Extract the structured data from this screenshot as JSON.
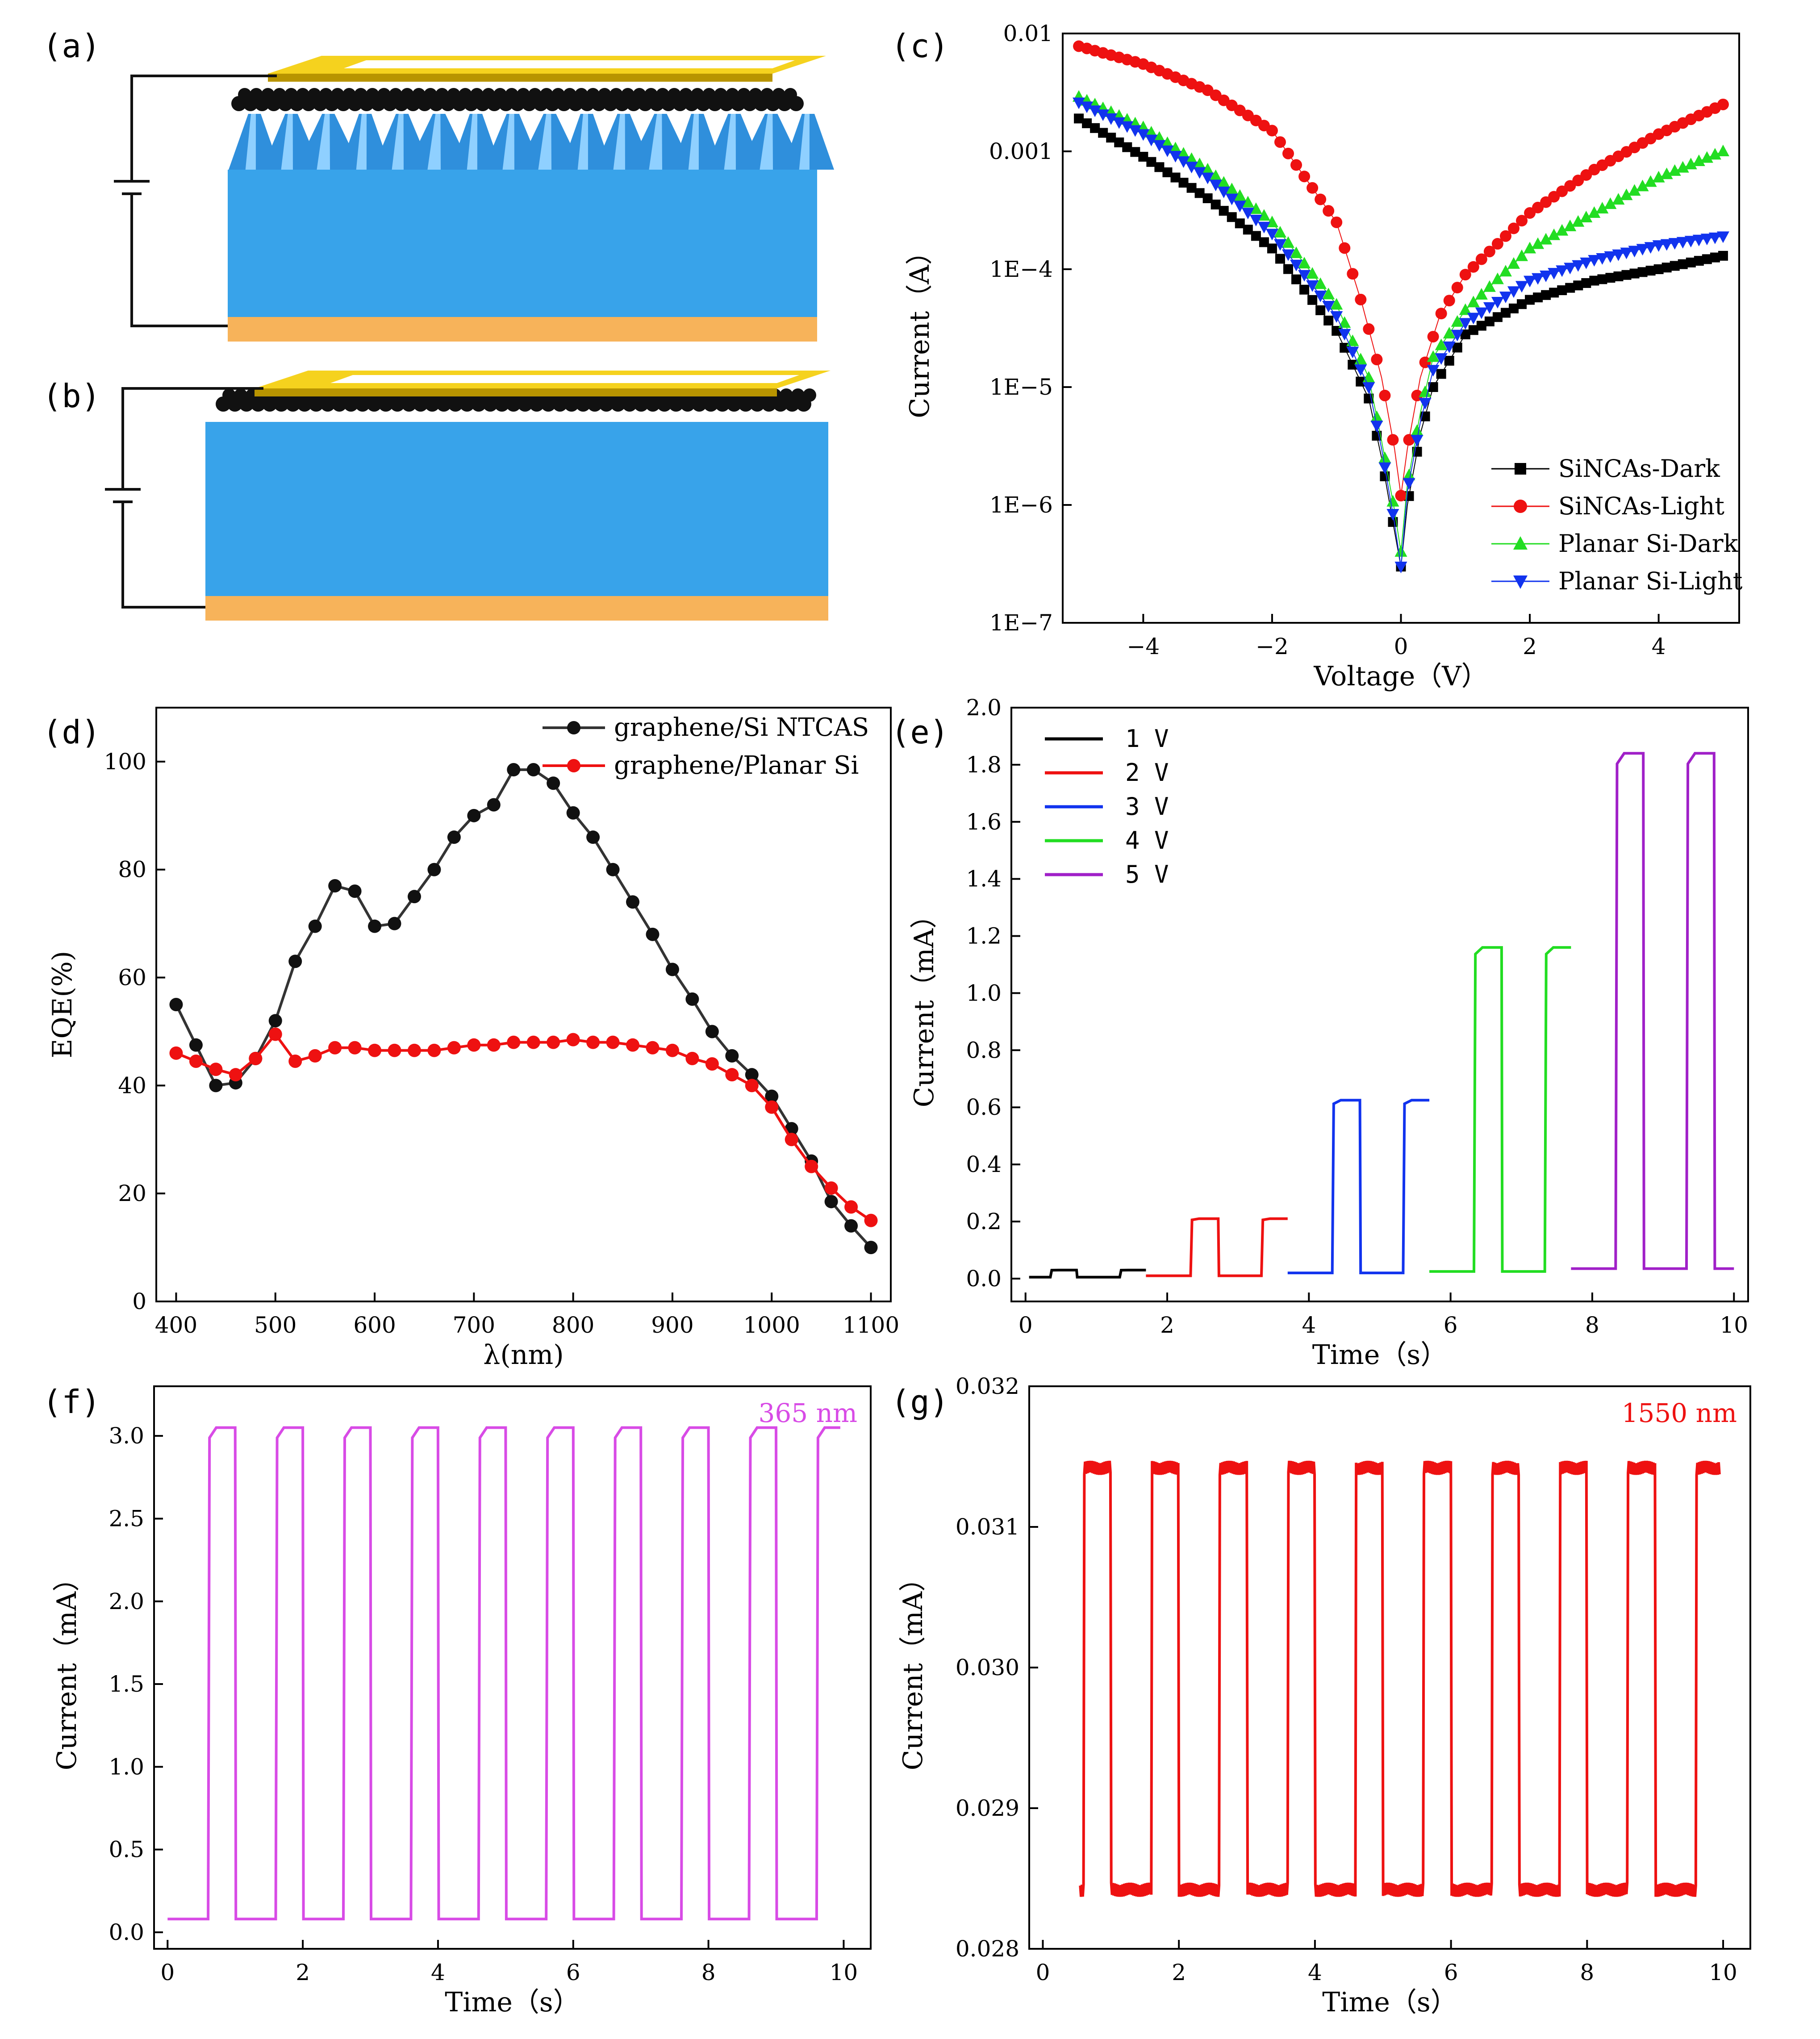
{
  "figure": {
    "background": "#ffffff"
  },
  "colors": {
    "gold": "#f5d21e",
    "gold_dark": "#b89400",
    "substrate": "#38a3ea",
    "substrate_dark": "#1f78bf",
    "electrode": "#f7b35a",
    "cone": "#2f8fdc",
    "cone_light": "#8fd0ff",
    "graphene_ball": "#111111",
    "wire": "#111111"
  },
  "diagrams": [
    {
      "label": "(a)",
      "name": "SiNCAs device schematic",
      "has_cones": true,
      "source": "a"
    },
    {
      "label": "(b)",
      "name": "Planar Si device schematic",
      "has_cones": false,
      "source": "b"
    }
  ],
  "chart_data": [
    {
      "id": "c",
      "label": "(c)",
      "type": "scatter",
      "title": "",
      "xlabel": "Voltage（V）",
      "ylabel": "Current（A）",
      "xlim": [
        -5.25,
        5.25
      ],
      "ylim": [
        1e-07,
        0.01
      ],
      "yscale": "log",
      "xticks": [
        -4,
        -2,
        0,
        2,
        4
      ],
      "xtick_labels": [
        "−4",
        "−2",
        "0",
        "2",
        "4"
      ],
      "yticks": [
        1e-07,
        1e-06,
        1e-05,
        0.0001,
        0.001,
        0.01
      ],
      "ytick_labels": [
        "1E−7",
        "1E−6",
        "1E−5",
        "1E−4",
        "0.001",
        "0.01"
      ],
      "legend_position": "bottom-right",
      "series": [
        {
          "name": "SiNCAs-Dark",
          "color": "#000000",
          "marker": "square",
          "x": [
            -5,
            -4,
            -3,
            -2,
            -1,
            -0.5,
            -0.3,
            -0.1,
            0,
            0.1,
            0.3,
            0.5,
            1,
            2,
            3,
            4,
            5
          ],
          "y": [
            0.0019,
            0.0009,
            0.0004,
            0.00015,
            3e-05,
            8e-06,
            2.5e-06,
            6e-07,
            3e-07,
            1e-06,
            4e-06,
            1e-05,
            2.8e-05,
            5.5e-05,
            8e-05,
            0.0001,
            0.00013
          ]
        },
        {
          "name": "SiNCAs-Light",
          "color": "#ee1111",
          "marker": "circle",
          "x": [
            -5,
            -4,
            -3,
            -2,
            -1,
            -0.6,
            -0.3,
            -0.1,
            0,
            0.1,
            0.3,
            0.6,
            1,
            2,
            3,
            4,
            5
          ],
          "y": [
            0.0078,
            0.0055,
            0.0033,
            0.0015,
            0.00025,
            5e-05,
            1.2e-05,
            3e-06,
            1.2e-06,
            3e-06,
            1.2e-05,
            4e-05,
            9e-05,
            0.0003,
            0.0007,
            0.0014,
            0.0025
          ]
        },
        {
          "name": "Planar Si-Dark",
          "color": "#22dd22",
          "marker": "triangle-up",
          "x": [
            -5,
            -4,
            -3,
            -2,
            -1,
            -0.5,
            -0.3,
            -0.1,
            0,
            0.1,
            0.3,
            0.5,
            1,
            2,
            3,
            4,
            5
          ],
          "y": [
            0.0029,
            0.0016,
            0.0007,
            0.00025,
            5e-05,
            1.2e-05,
            3.5e-06,
            9e-07,
            4e-07,
            1.5e-06,
            6e-06,
            1.8e-05,
            4.5e-05,
            0.00015,
            0.0003,
            0.0006,
            0.001
          ]
        },
        {
          "name": "Planar Si-Light",
          "color": "#1133ee",
          "marker": "triangle-down",
          "x": [
            -5,
            -4,
            -3,
            -2,
            -1,
            -0.5,
            -0.3,
            -0.1,
            0,
            0.1,
            0.3,
            0.5,
            1,
            2,
            3,
            4,
            5
          ],
          "y": [
            0.0026,
            0.0014,
            0.0006,
            0.0002,
            4e-05,
            1e-05,
            3e-06,
            7e-07,
            3e-07,
            1.3e-06,
            5e-06,
            1.4e-05,
            3.5e-05,
            8e-05,
            0.00012,
            0.00016,
            0.00019
          ]
        }
      ]
    },
    {
      "id": "d",
      "label": "(d)",
      "type": "line",
      "title": "",
      "xlabel": "λ(nm)",
      "ylabel": "EQE(%)",
      "xlim": [
        380,
        1120
      ],
      "ylim": [
        0,
        110
      ],
      "xticks": [
        400,
        500,
        600,
        700,
        800,
        900,
        1000,
        1100
      ],
      "xtick_labels": [
        "400",
        "500",
        "600",
        "700",
        "800",
        "900",
        "1000",
        "1100"
      ],
      "yticks": [
        0,
        20,
        40,
        60,
        80,
        100
      ],
      "ytick_labels": [
        "0",
        "20",
        "40",
        "60",
        "80",
        "100"
      ],
      "legend_position": "top-right",
      "series": [
        {
          "name": "graphene/Si NTCAS",
          "color": "#333333",
          "marker_color": "#111111",
          "x": [
            400,
            420,
            440,
            460,
            480,
            500,
            520,
            540,
            560,
            580,
            600,
            620,
            640,
            660,
            680,
            700,
            720,
            740,
            760,
            780,
            800,
            820,
            840,
            860,
            880,
            900,
            920,
            940,
            960,
            980,
            1000,
            1020,
            1040,
            1060,
            1080,
            1100
          ],
          "y": [
            55,
            47.5,
            40,
            40.5,
            45,
            52,
            63,
            69.5,
            77,
            76,
            69.5,
            70,
            75,
            80,
            86,
            90,
            92,
            98.5,
            98.5,
            96,
            90.5,
            86,
            80,
            74,
            68,
            61.5,
            56,
            50,
            45.5,
            42,
            38,
            32,
            26,
            18.5,
            14,
            10
          ]
        },
        {
          "name": "graphene/Planar Si",
          "color": "#ee1111",
          "marker_color": "#ee1111",
          "x": [
            400,
            420,
            440,
            460,
            480,
            500,
            520,
            540,
            560,
            580,
            600,
            620,
            640,
            660,
            680,
            700,
            720,
            740,
            760,
            780,
            800,
            820,
            840,
            860,
            880,
            900,
            920,
            940,
            960,
            980,
            1000,
            1020,
            1040,
            1060,
            1080,
            1100
          ],
          "y": [
            46,
            44.5,
            43,
            42,
            45,
            49.5,
            44.5,
            45.5,
            47,
            47,
            46.5,
            46.5,
            46.5,
            46.5,
            47,
            47.5,
            47.5,
            48,
            48,
            48,
            48.5,
            48,
            48,
            47.5,
            47,
            46.5,
            45,
            44,
            42,
            40,
            36,
            30,
            25,
            21,
            17.5,
            15
          ]
        }
      ]
    },
    {
      "id": "e",
      "label": "(e)",
      "type": "line",
      "title": "",
      "xlabel": "Time（s）",
      "ylabel": "Current（mA）",
      "xlim": [
        -0.2,
        10.2
      ],
      "ylim": [
        -0.08,
        2.0
      ],
      "xticks": [
        0,
        2,
        4,
        6,
        8,
        10
      ],
      "xtick_labels": [
        "0",
        "2",
        "4",
        "6",
        "8",
        "10"
      ],
      "yticks": [
        0,
        0.2,
        0.4,
        0.6,
        0.8,
        1.0,
        1.2,
        1.4,
        1.6,
        1.8,
        2.0
      ],
      "ytick_labels": [
        "0.0",
        "0.2",
        "0.4",
        "0.6",
        "0.8",
        "1.0",
        "1.2",
        "1.4",
        "1.6",
        "1.8",
        "2.0"
      ],
      "legend_position": "top-left",
      "segments": [
        {
          "name": "1 V",
          "color": "#000000",
          "t_start": 0.05,
          "t_end": 1.7,
          "off": 0.005,
          "on": 0.03,
          "on_windows": [
            [
              0.35,
              0.72
            ],
            [
              1.33,
              1.7
            ]
          ]
        },
        {
          "name": "2 V",
          "color": "#ee1111",
          "t_start": 1.7,
          "t_end": 3.7,
          "off": 0.01,
          "on": 0.21,
          "on_windows": [
            [
              2.33,
              2.72
            ],
            [
              3.33,
              3.7
            ]
          ]
        },
        {
          "name": "3 V",
          "color": "#1133ee",
          "t_start": 3.7,
          "t_end": 5.7,
          "off": 0.02,
          "on": 0.625,
          "on_windows": [
            [
              4.33,
              4.72
            ],
            [
              5.33,
              5.7
            ]
          ]
        },
        {
          "name": "4 V",
          "color": "#22dd22",
          "t_start": 5.7,
          "t_end": 7.7,
          "off": 0.025,
          "on": 1.16,
          "on_windows": [
            [
              6.33,
              6.72
            ],
            [
              7.33,
              7.7
            ]
          ]
        },
        {
          "name": "5 V",
          "color": "#a020c8",
          "t_start": 7.7,
          "t_end": 10.0,
          "off": 0.035,
          "on": 1.84,
          "on_windows": [
            [
              8.33,
              8.72
            ],
            [
              9.33,
              9.72
            ]
          ]
        }
      ]
    },
    {
      "id": "f",
      "label": "(f)",
      "type": "line",
      "title": "",
      "xlabel": "Time（s）",
      "ylabel": "Current（mA）",
      "annotation": "365 nm",
      "color": "#d84be6",
      "xlim": [
        -0.2,
        10.4
      ],
      "ylim": [
        -0.1,
        3.3
      ],
      "xticks": [
        0,
        2,
        4,
        6,
        8,
        10
      ],
      "xtick_labels": [
        "0",
        "2",
        "4",
        "6",
        "8",
        "10"
      ],
      "yticks": [
        0,
        0.5,
        1.0,
        1.5,
        2.0,
        2.5,
        3.0
      ],
      "ytick_labels": [
        "0.0",
        "0.5",
        "1.0",
        "1.5",
        "2.0",
        "2.5",
        "3.0"
      ],
      "t_start": 0.0,
      "t_end": 9.95,
      "period": 1.0,
      "first_on": 0.6,
      "on_duration": 0.4,
      "off": 0.08,
      "on": 3.05
    },
    {
      "id": "g",
      "label": "(g)",
      "type": "line",
      "title": "",
      "xlabel": "Time（s）",
      "ylabel": "Current（mA）",
      "annotation": "1550 nm",
      "color": "#ee1111",
      "xlim": [
        -0.2,
        10.4
      ],
      "ylim": [
        0.028,
        0.032
      ],
      "xticks": [
        0,
        2,
        4,
        6,
        8,
        10
      ],
      "xtick_labels": [
        "0",
        "2",
        "4",
        "6",
        "8",
        "10"
      ],
      "yticks": [
        0.028,
        0.029,
        0.03,
        0.031,
        0.032
      ],
      "ytick_labels": [
        "0.028",
        "0.029",
        "0.030",
        "0.031",
        "0.032"
      ],
      "t_start": 0.55,
      "t_end": 9.95,
      "period": 1.0,
      "first_on": 0.6,
      "on_duration": 0.4,
      "off": 0.02842,
      "on": 0.03142,
      "noise": 5e-05
    }
  ]
}
